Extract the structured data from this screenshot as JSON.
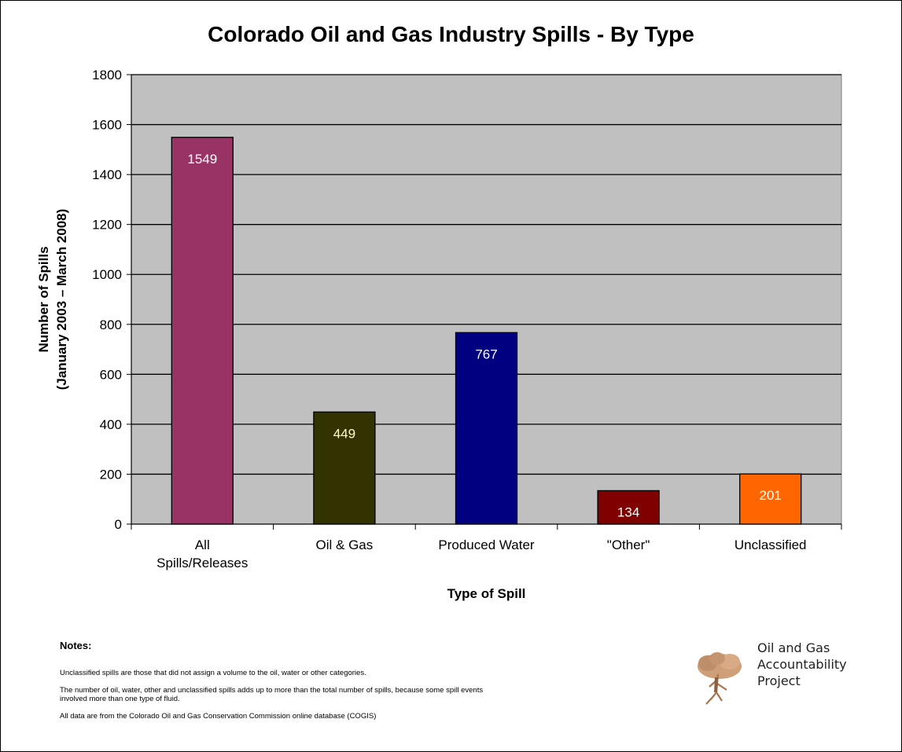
{
  "chart_data": {
    "type": "bar",
    "title": "Colorado Oil and Gas Industry Spills - By Type",
    "xlabel": "Type of Spill",
    "ylabel_line1": "Number of Spills",
    "ylabel_line2": "(January 2003 – March 2008)",
    "ylim": [
      0,
      1800
    ],
    "yticks": [
      0,
      200,
      400,
      600,
      800,
      1000,
      1200,
      1400,
      1600,
      1800
    ],
    "grid": true,
    "categories": [
      [
        "All",
        "Spills/Releases"
      ],
      [
        "Oil & Gas"
      ],
      [
        "Produced Water"
      ],
      [
        "\"Other\""
      ],
      [
        "Unclassified"
      ]
    ],
    "values": [
      1549,
      449,
      767,
      134,
      201
    ],
    "bar_colors": [
      "#993366",
      "#333300",
      "#000080",
      "#800000",
      "#FF6600"
    ],
    "label_colors": [
      "#ffffff",
      "#ffffcc",
      "#ffffff",
      "#ffffff",
      "#ffffff"
    ],
    "plot_background": "#C0C0C0"
  },
  "notes": {
    "heading": "Notes:",
    "lines": [
      "Unclassified spills are those that did not assign a volume to the oil, water or other categories.",
      "The number of oil, water, other and unclassified spills adds up to more than the total number of spills, because some spill events involved more than one type of fluid.",
      "All data are from the Colorado Oil and Gas Conservation Commission online database (COGIS)"
    ]
  },
  "logo": {
    "icon": "tree-icon",
    "lines": [
      "Oil and Gas",
      "Accountability",
      "Project"
    ]
  }
}
